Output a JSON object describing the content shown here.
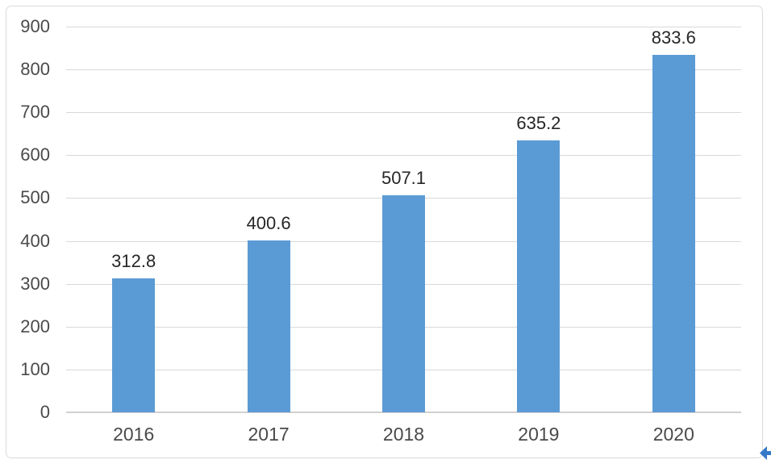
{
  "chart_data": {
    "type": "bar",
    "categories": [
      "2016",
      "2017",
      "2018",
      "2019",
      "2020"
    ],
    "values": [
      312.8,
      400.6,
      507.1,
      635.2,
      833.6
    ],
    "data_labels": [
      "312.8",
      "400.6",
      "507.1",
      "635.2",
      "833.6"
    ],
    "y_ticks": [
      "0",
      "100",
      "200",
      "300",
      "400",
      "500",
      "600",
      "700",
      "800",
      "900"
    ],
    "y_tick_values": [
      0,
      100,
      200,
      300,
      400,
      500,
      600,
      700,
      800,
      900
    ],
    "ylim": [
      0,
      900
    ],
    "title": "",
    "xlabel": "",
    "ylabel": "",
    "grid": true,
    "legend_position": "none",
    "bar_color": "#5b9bd5",
    "gridline_color": "#d9d9d9",
    "axis_line_color": "#d2d0d0",
    "tick_label_color": "#4a4a4a",
    "data_label_color": "#262626",
    "frame_border_color": "#d9d9d9",
    "background_color": "#ffffff"
  },
  "corner_icon": {
    "name": "chevron-left-icon",
    "color": "#3579c8"
  }
}
